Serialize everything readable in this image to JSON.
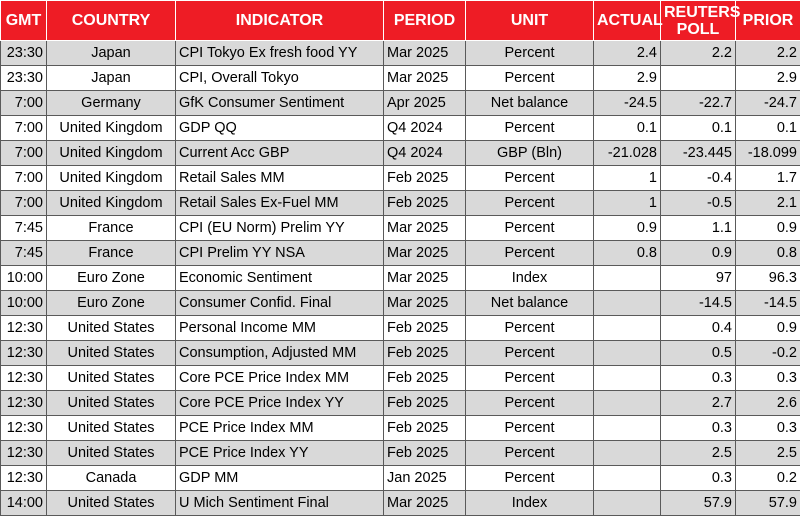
{
  "headers": {
    "gmt": "GMT",
    "country": "COUNTRY",
    "indicator": "INDICATOR",
    "period": "PERIOD",
    "unit": "UNIT",
    "actual": "ACTUAL",
    "poll_line1": "REUTERS",
    "poll_line2": "POLL",
    "prior": "PRIOR"
  },
  "colors": {
    "header_bg": "#ee1c25",
    "header_text": "#ffffff",
    "row_shaded": "#d9d9d9",
    "row_plain": "#ffffff"
  },
  "rows": [
    {
      "gmt": "23:30",
      "country": "Japan",
      "indicator": "CPI Tokyo Ex fresh food YY",
      "period": "Mar 2025",
      "unit": "Percent",
      "actual": "2.4",
      "poll": "2.2",
      "prior": "2.2"
    },
    {
      "gmt": "23:30",
      "country": "Japan",
      "indicator": "CPI, Overall Tokyo",
      "period": "Mar 2025",
      "unit": "Percent",
      "actual": "2.9",
      "poll": "",
      "prior": "2.9"
    },
    {
      "gmt": "7:00",
      "country": "Germany",
      "indicator": "GfK Consumer Sentiment",
      "period": "Apr 2025",
      "unit": "Net balance",
      "actual": "-24.5",
      "poll": "-22.7",
      "prior": "-24.7"
    },
    {
      "gmt": "7:00",
      "country": "United Kingdom",
      "indicator": "GDP QQ",
      "period": "Q4 2024",
      "unit": "Percent",
      "actual": "0.1",
      "poll": "0.1",
      "prior": "0.1"
    },
    {
      "gmt": "7:00",
      "country": "United Kingdom",
      "indicator": "Current Acc GBP",
      "period": "Q4 2024",
      "unit": "GBP (Bln)",
      "actual": "-21.028",
      "poll": "-23.445",
      "prior": "-18.099"
    },
    {
      "gmt": "7:00",
      "country": "United Kingdom",
      "indicator": "Retail Sales MM",
      "period": "Feb 2025",
      "unit": "Percent",
      "actual": "1",
      "poll": "-0.4",
      "prior": "1.7"
    },
    {
      "gmt": "7:00",
      "country": "United Kingdom",
      "indicator": "Retail Sales Ex-Fuel MM",
      "period": "Feb 2025",
      "unit": "Percent",
      "actual": "1",
      "poll": "-0.5",
      "prior": "2.1"
    },
    {
      "gmt": "7:45",
      "country": "France",
      "indicator": "CPI (EU Norm) Prelim YY",
      "period": "Mar 2025",
      "unit": "Percent",
      "actual": "0.9",
      "poll": "1.1",
      "prior": "0.9"
    },
    {
      "gmt": "7:45",
      "country": "France",
      "indicator": "CPI Prelim YY NSA",
      "period": "Mar 2025",
      "unit": "Percent",
      "actual": "0.8",
      "poll": "0.9",
      "prior": "0.8"
    },
    {
      "gmt": "10:00",
      "country": "Euro Zone",
      "indicator": "Economic Sentiment",
      "period": "Mar 2025",
      "unit": "Index",
      "actual": "",
      "poll": "97",
      "prior": "96.3"
    },
    {
      "gmt": "10:00",
      "country": "Euro Zone",
      "indicator": "Consumer Confid. Final",
      "period": "Mar 2025",
      "unit": "Net balance",
      "actual": "",
      "poll": "-14.5",
      "prior": "-14.5"
    },
    {
      "gmt": "12:30",
      "country": "United States",
      "indicator": "Personal Income MM",
      "period": "Feb 2025",
      "unit": "Percent",
      "actual": "",
      "poll": "0.4",
      "prior": "0.9"
    },
    {
      "gmt": "12:30",
      "country": "United States",
      "indicator": "Consumption, Adjusted MM",
      "period": "Feb 2025",
      "unit": "Percent",
      "actual": "",
      "poll": "0.5",
      "prior": "-0.2"
    },
    {
      "gmt": "12:30",
      "country": "United States",
      "indicator": "Core PCE Price Index MM",
      "period": "Feb 2025",
      "unit": "Percent",
      "actual": "",
      "poll": "0.3",
      "prior": "0.3"
    },
    {
      "gmt": "12:30",
      "country": "United States",
      "indicator": "Core PCE Price Index YY",
      "period": "Feb 2025",
      "unit": "Percent",
      "actual": "",
      "poll": "2.7",
      "prior": "2.6"
    },
    {
      "gmt": "12:30",
      "country": "United States",
      "indicator": "PCE Price Index MM",
      "period": "Feb 2025",
      "unit": "Percent",
      "actual": "",
      "poll": "0.3",
      "prior": "0.3"
    },
    {
      "gmt": "12:30",
      "country": "United States",
      "indicator": "PCE Price Index YY",
      "period": "Feb 2025",
      "unit": "Percent",
      "actual": "",
      "poll": "2.5",
      "prior": "2.5"
    },
    {
      "gmt": "12:30",
      "country": "Canada",
      "indicator": "GDP MM",
      "period": "Jan 2025",
      "unit": "Percent",
      "actual": "",
      "poll": "0.3",
      "prior": "0.2"
    },
    {
      "gmt": "14:00",
      "country": "United States",
      "indicator": "U Mich Sentiment Final",
      "period": "Mar 2025",
      "unit": "Index",
      "actual": "",
      "poll": "57.9",
      "prior": "57.9"
    }
  ]
}
